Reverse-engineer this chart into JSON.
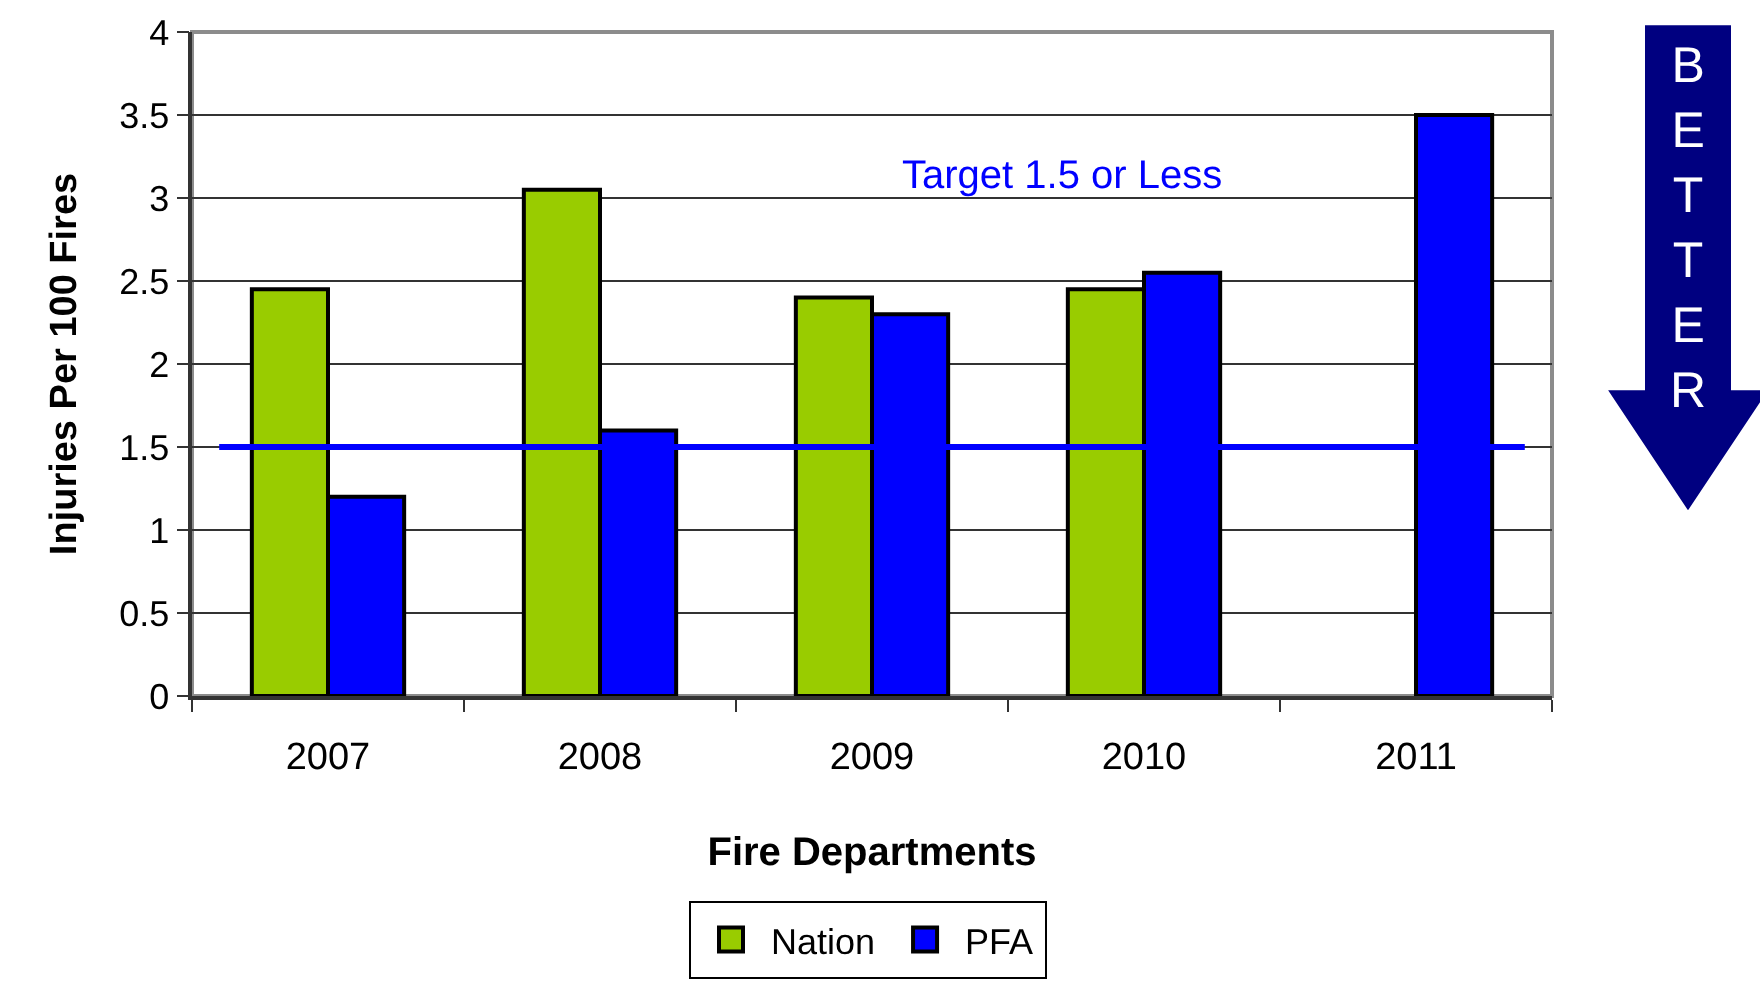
{
  "chart_data": {
    "type": "bar",
    "xlabel": "Fire Departments",
    "ylabel": "Injuries Per 100 Fires",
    "categories": [
      "2007",
      "2008",
      "2009",
      "2010",
      "2011"
    ],
    "series": [
      {
        "name": "Nation",
        "color": "#99cc00",
        "values": [
          2.45,
          3.05,
          2.4,
          2.45,
          null
        ]
      },
      {
        "name": "PFA",
        "color": "#0000ff",
        "values": [
          1.2,
          1.6,
          2.3,
          2.55,
          3.5
        ]
      }
    ],
    "ylim": [
      0,
      4
    ],
    "yticks": [
      0,
      0.5,
      1,
      1.5,
      2,
      2.5,
      3,
      3.5,
      4
    ],
    "grid": "y",
    "legend": "bottom",
    "ref_lines": [
      {
        "axis": "y",
        "value": 1.5,
        "label": "Target 1.5 or Less",
        "color": "#0000ff"
      }
    ],
    "annotations": [
      "BETTER"
    ]
  }
}
